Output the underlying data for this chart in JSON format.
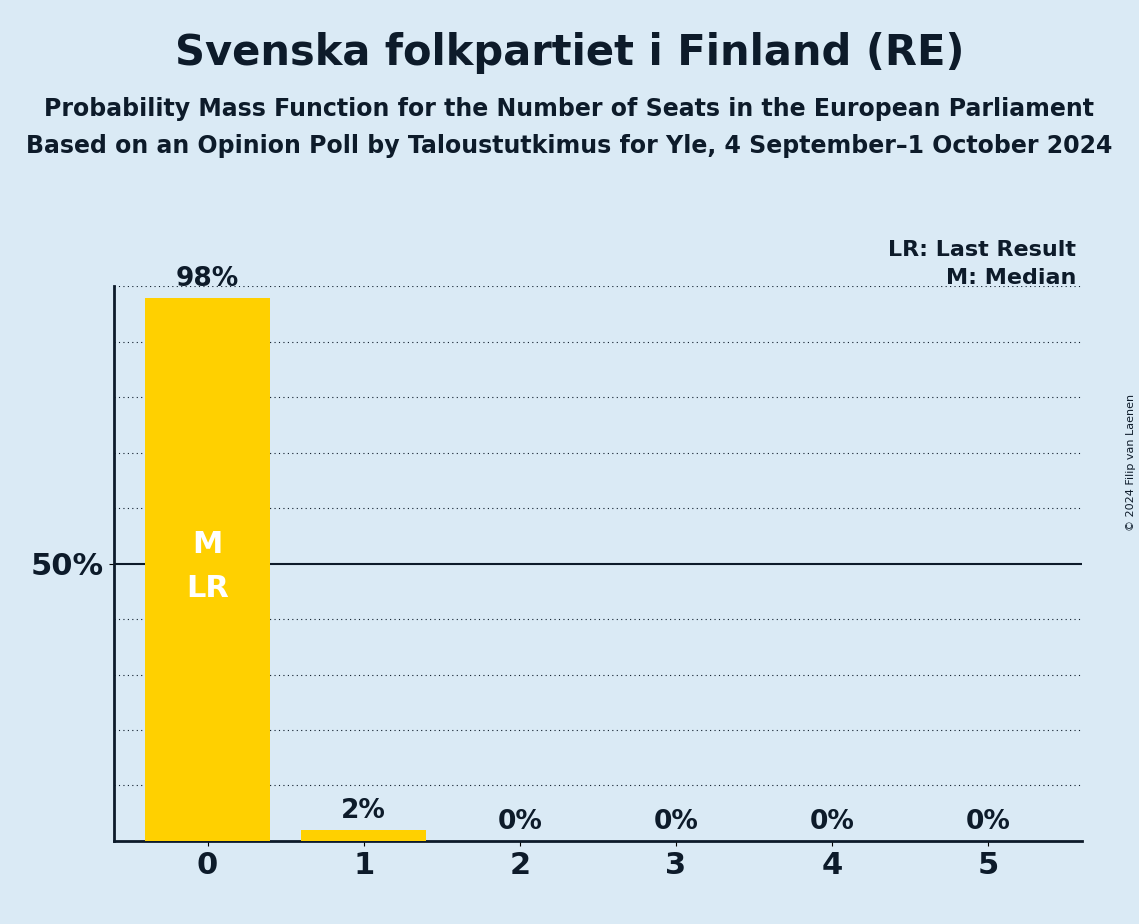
{
  "title": "Svenska folkpartiet i Finland (RE)",
  "subtitle1": "Probability Mass Function for the Number of Seats in the European Parliament",
  "subtitle2": "Based on an Opinion Poll by Taloustutkimus for Yle, 4 September–1 October 2024",
  "copyright": "© 2024 Filip van Laenen",
  "categories": [
    0,
    1,
    2,
    3,
    4,
    5
  ],
  "values": [
    0.98,
    0.02,
    0.0,
    0.0,
    0.0,
    0.0
  ],
  "bar_color": "#FFD000",
  "background_color": "#daeaf5",
  "text_color": "#0d1b2a",
  "annotation_color": "#ffffff",
  "bar_label_format": [
    "98%",
    "2%",
    "0%",
    "0%",
    "0%",
    "0%"
  ],
  "median_seat": 0,
  "last_result_seat": 0,
  "ylim": [
    0,
    1.0
  ],
  "grid_ticks": [
    0.1,
    0.2,
    0.3,
    0.4,
    0.5,
    0.6,
    0.7,
    0.8,
    0.9,
    1.0
  ],
  "solid_grid_tick": 0.5,
  "legend_lr": "LR: Last Result",
  "legend_m": "M: Median",
  "title_fontsize": 30,
  "subtitle_fontsize": 17,
  "label_fontsize": 19,
  "tick_fontsize": 22,
  "annotation_fontsize": 22,
  "legend_fontsize": 16,
  "bar_width": 0.8
}
